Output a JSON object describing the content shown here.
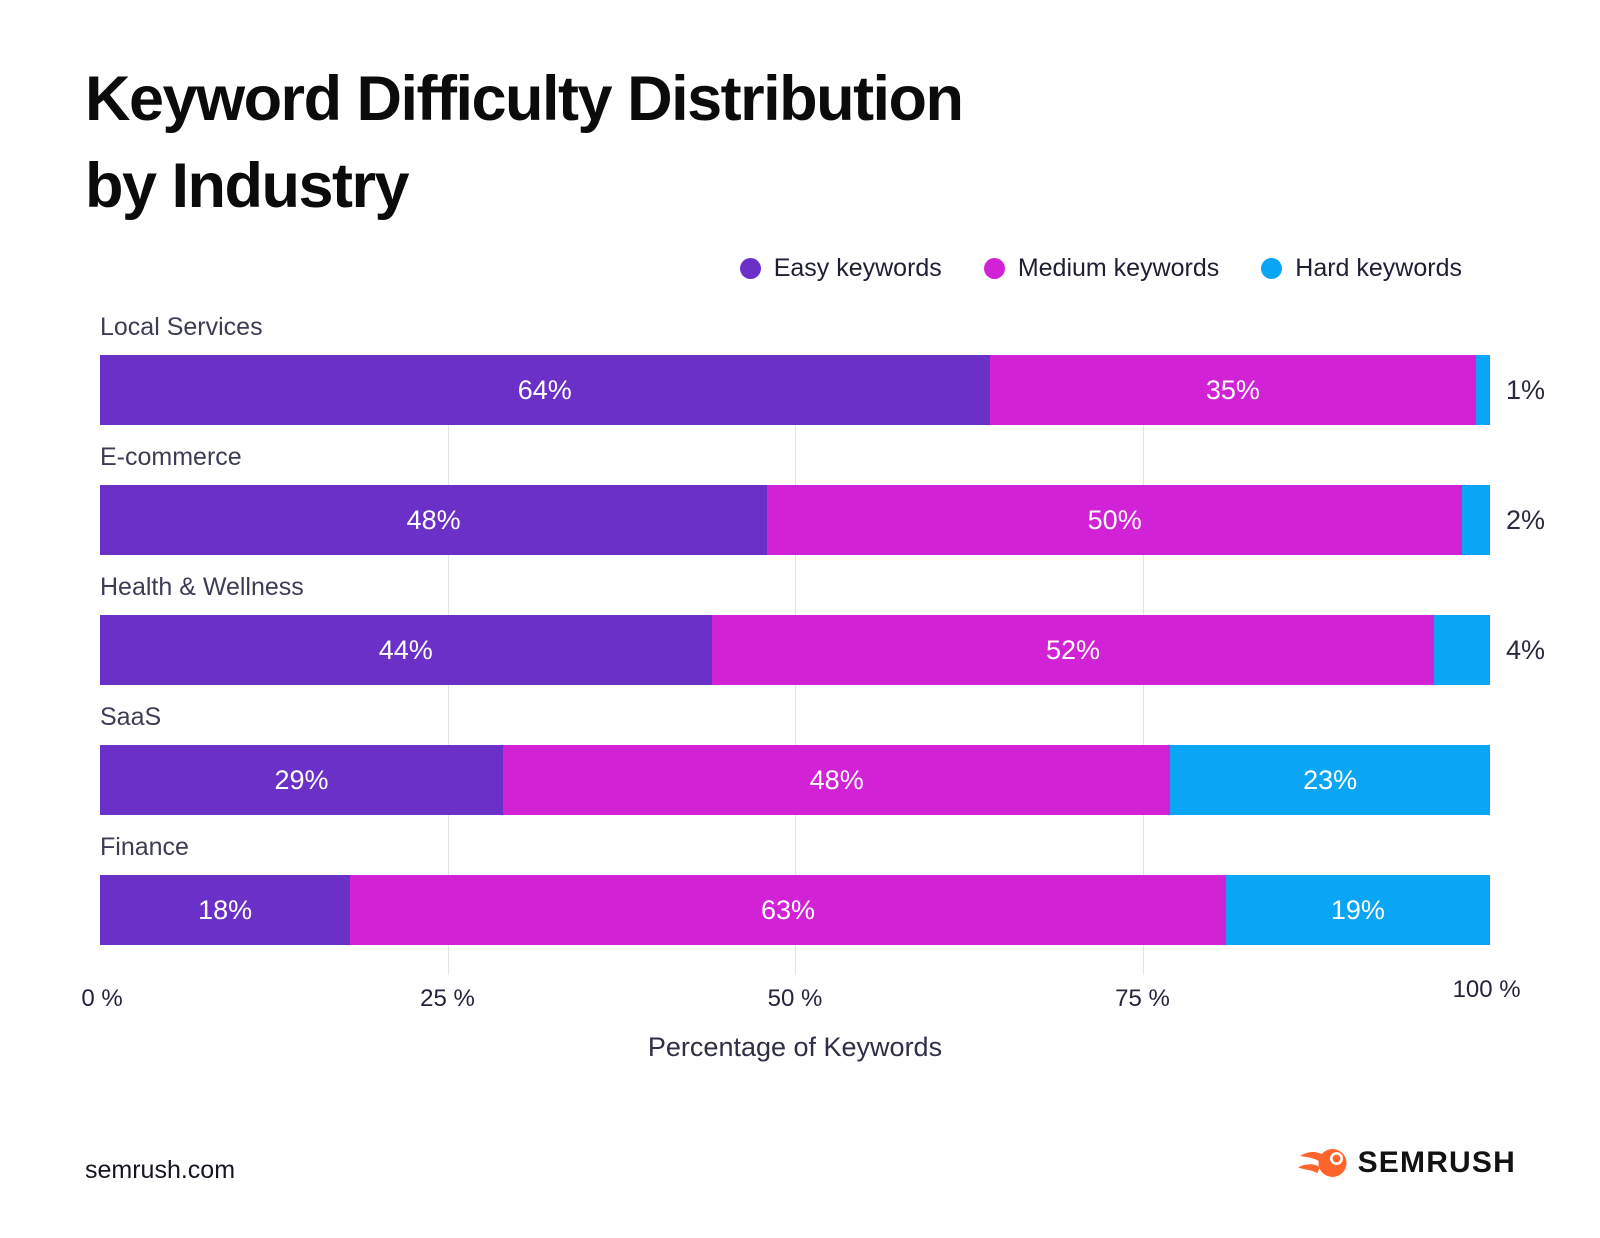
{
  "title": "Keyword Difficulty Distribution\nby Industry",
  "legend": [
    {
      "label": "Easy keywords",
      "color": "#6A30C7"
    },
    {
      "label": "Medium keywords",
      "color": "#D222D6"
    },
    {
      "label": "Hard keywords",
      "color": "#0AA5F5"
    }
  ],
  "chart_data": {
    "type": "bar",
    "orientation": "horizontal",
    "stacked": true,
    "title": "Keyword Difficulty Distribution by Industry",
    "categories": [
      "Local Services",
      "E-commerce",
      "Health & Wellness",
      "SaaS",
      "Finance"
    ],
    "series": [
      {
        "key": "easy",
        "name": "Easy keywords",
        "color": "#6A30C7",
        "values": [
          64,
          48,
          44,
          29,
          18
        ]
      },
      {
        "key": "medium",
        "name": "Medium keywords",
        "color": "#D222D6",
        "values": [
          35,
          50,
          52,
          48,
          63
        ]
      },
      {
        "key": "hard",
        "name": "Hard keywords",
        "color": "#0AA5F5",
        "values": [
          1,
          2,
          4,
          23,
          19
        ]
      }
    ],
    "value_suffix": "%",
    "xlabel": "Percentage of Keywords",
    "x_ticks": [
      "0 %",
      "25 %",
      "50 %",
      "75 %",
      "100 %"
    ],
    "xlim": [
      0,
      100
    ],
    "grid": "vertical",
    "legend_position": "top-right"
  },
  "footer": {
    "site": "semrush.com",
    "brand": "SEMRUSH",
    "logo_color": "#FF642D"
  }
}
